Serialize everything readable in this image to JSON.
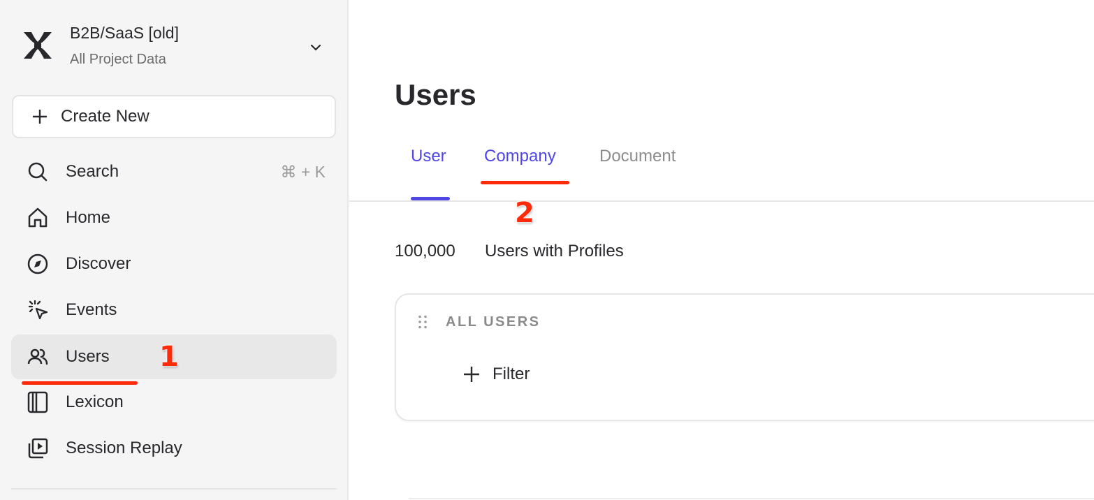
{
  "project": {
    "title": "B2B/SaaS [old]",
    "subtitle": "All Project Data"
  },
  "sidebar": {
    "create_label": "Create New",
    "items": [
      {
        "label": "Search",
        "icon": "search-icon",
        "shortcut": "⌘ + K"
      },
      {
        "label": "Home",
        "icon": "home-icon"
      },
      {
        "label": "Discover",
        "icon": "compass-icon"
      },
      {
        "label": "Events",
        "icon": "cursor-click-icon"
      },
      {
        "label": "Users",
        "icon": "users-icon",
        "active": true
      },
      {
        "label": "Lexicon",
        "icon": "book-icon"
      },
      {
        "label": "Session Replay",
        "icon": "replay-icon"
      }
    ]
  },
  "main": {
    "title": "Users",
    "tabs": [
      {
        "label": "User",
        "active": true
      },
      {
        "label": "Company"
      },
      {
        "label": "Document"
      }
    ],
    "count": "100,000",
    "count_label": "Users with Profiles",
    "card": {
      "title": "ALL USERS",
      "filter_label": "Filter"
    }
  },
  "annotations": {
    "step1": "1",
    "step2": "2"
  },
  "colors": {
    "accent": "#5046e5",
    "annotation": "#ff2a0a",
    "sidebar_bg": "#f5f5f5",
    "inactive_tab": "#8c8c8c"
  }
}
